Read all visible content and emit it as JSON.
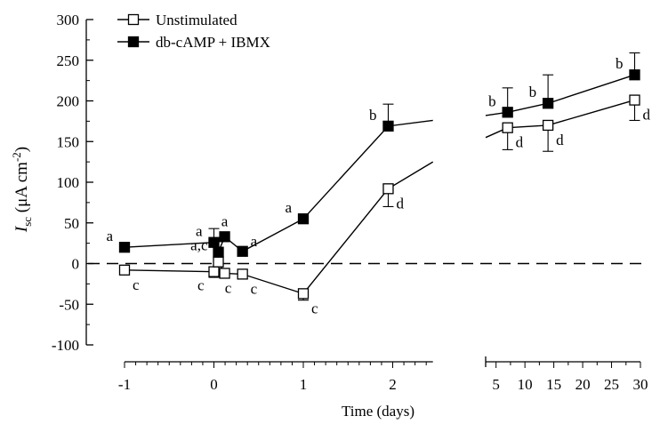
{
  "chart_data": {
    "type": "line",
    "title": "",
    "xlabel": "Time (days)",
    "ylabel": {
      "main": "I",
      "sub": "sc",
      "units_prefix": " (μA cm",
      "units_sup": "-2",
      "units_suffix": ")"
    },
    "ylim": [
      -100,
      300
    ],
    "y_ticks": [
      -100,
      -50,
      0,
      50,
      100,
      150,
      200,
      250,
      300
    ],
    "y_tick_labels": [
      "-100",
      "-50",
      "0",
      "50",
      "100",
      "150",
      "200",
      "250",
      "300"
    ],
    "broken_x_axis": true,
    "x_left_segment": {
      "range": [
        -1,
        2.45
      ],
      "ticks": [
        -1,
        0,
        1,
        2
      ],
      "tick_labels": [
        "-1",
        "0",
        "1",
        "2"
      ]
    },
    "x_right_segment": {
      "range": [
        3.2,
        30
      ],
      "ticks": [
        5,
        10,
        15,
        20,
        25,
        30
      ],
      "tick_labels": [
        "5",
        "10",
        "15",
        "20",
        "25",
        "30"
      ]
    },
    "reference_line": {
      "y": 0,
      "style": "dashed"
    },
    "legend": {
      "position": "top-left"
    },
    "series": [
      {
        "name": "Unstimulated",
        "marker": "open-square",
        "color": "#000000",
        "points": [
          {
            "x": -1,
            "y": -8,
            "err": 0,
            "label": "c",
            "label_pos": "below-right"
          },
          {
            "x": 0,
            "y": -10,
            "err": 7,
            "label": "c",
            "label_pos": "below-left"
          },
          {
            "x": 0.05,
            "y": 2,
            "err": 0,
            "label": "",
            "label_pos": ""
          },
          {
            "x": 0.12,
            "y": -12,
            "err": 0,
            "label": "c",
            "label_pos": "below"
          },
          {
            "x": 0.32,
            "y": -13,
            "err": 0,
            "label": "c",
            "label_pos": "below-right"
          },
          {
            "x": 1,
            "y": -37,
            "err": 8,
            "label": "c",
            "label_pos": "below-right"
          },
          {
            "x": 1.95,
            "y": 92,
            "err": 22,
            "label": "d",
            "label_pos": "below-right"
          },
          {
            "x": 7,
            "y": 167,
            "err": 27,
            "label": "d",
            "label_pos": "below-right"
          },
          {
            "x": 14,
            "y": 170,
            "err": 32,
            "label": "d",
            "label_pos": "below-right"
          },
          {
            "x": 29,
            "y": 201,
            "err": 25,
            "label": "d",
            "label_pos": "below-right"
          }
        ],
        "left_tail_to": {
          "x": 2.45,
          "y": 125
        },
        "right_head_from": {
          "x": 3.2,
          "y": 155
        }
      },
      {
        "name": "db-cAMP + IBMX",
        "marker": "filled-square",
        "color": "#000000",
        "points": [
          {
            "x": -1,
            "y": 20,
            "err": 0,
            "label": "a",
            "label_pos": "above-left"
          },
          {
            "x": 0,
            "y": 26,
            "err": 17,
            "label": "a",
            "label_pos": "above-left"
          },
          {
            "x": 0.05,
            "y": 14,
            "err": 0,
            "label": "a,c",
            "label_pos": "left"
          },
          {
            "x": 0.12,
            "y": 33,
            "err": 0,
            "label": "a",
            "label_pos": "above"
          },
          {
            "x": 0.32,
            "y": 15,
            "err": 0,
            "label": "a",
            "label_pos": "above-right"
          },
          {
            "x": 1,
            "y": 55,
            "err": 4,
            "label": "a",
            "label_pos": "above-left"
          },
          {
            "x": 1.95,
            "y": 169,
            "err": 27,
            "label": "b",
            "label_pos": "above-left"
          },
          {
            "x": 7,
            "y": 186,
            "err": 30,
            "label": "b",
            "label_pos": "above-left"
          },
          {
            "x": 14,
            "y": 197,
            "err": 35,
            "label": "b",
            "label_pos": "above-left"
          },
          {
            "x": 29,
            "y": 232,
            "err": 27,
            "label": "b",
            "label_pos": "above-left"
          }
        ],
        "left_tail_to": {
          "x": 2.45,
          "y": 176
        },
        "right_head_from": {
          "x": 3.2,
          "y": 182
        }
      }
    ]
  }
}
